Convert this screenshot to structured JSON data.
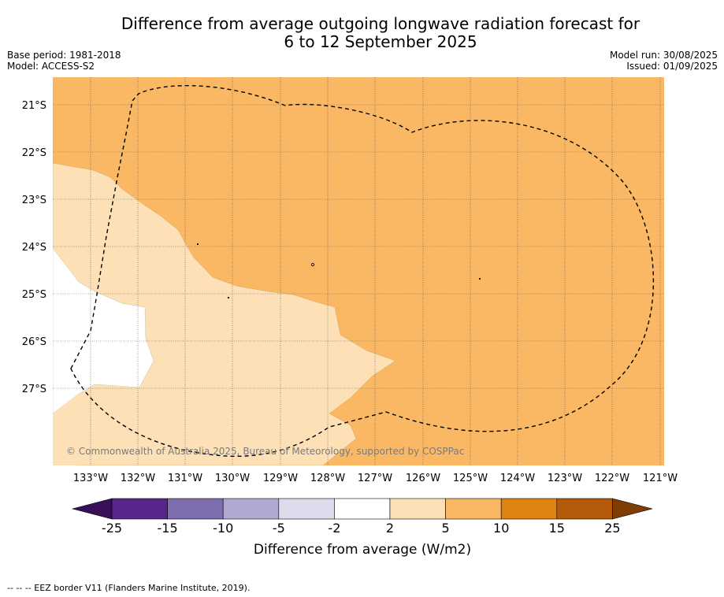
{
  "title_line1": "Difference from average outgoing longwave radiation forecast for",
  "title_line2": "6 to 12 September 2025",
  "base_period": "Base period: 1981-2018",
  "model": "Model: ACCESS-S2",
  "model_run": "Model run: 30/08/2025",
  "issued": "Issued: 01/09/2025",
  "copyright": "© Commonwealth of Australia 2025, Bureau of Meteorology, supported by COSPPac",
  "lat_labels": [
    "21°S",
    "22°S",
    "23°S",
    "24°S",
    "25°S",
    "26°S",
    "27°S"
  ],
  "lon_labels": [
    "133°W",
    "132°W",
    "131°W",
    "130°W",
    "129°W",
    "128°W",
    "127°W",
    "126°W",
    "125°W",
    "124°W",
    "123°W",
    "122°W",
    "121°W"
  ],
  "colorbar": {
    "label": "Difference from average (W/m2)",
    "ticks": [
      "-25",
      "-15",
      "-10",
      "-5",
      "-2",
      "2",
      "5",
      "10",
      "15",
      "25"
    ],
    "colors": [
      "#3a0f5a",
      "#56268a",
      "#7e6ead",
      "#b1a9d2",
      "#dcdcec",
      "#ffffff",
      "#fde0b6",
      "#fbb864",
      "#e0820f",
      "#b45a08",
      "#7e3d05"
    ]
  },
  "footnote": "--  --  -- EEZ border V11 (Flanders Marine Institute, 2019).",
  "map_colors": {
    "band_5_10": "#fbb864",
    "band_2_5": "#fde0b6",
    "band_neutral": "#ffffff"
  }
}
